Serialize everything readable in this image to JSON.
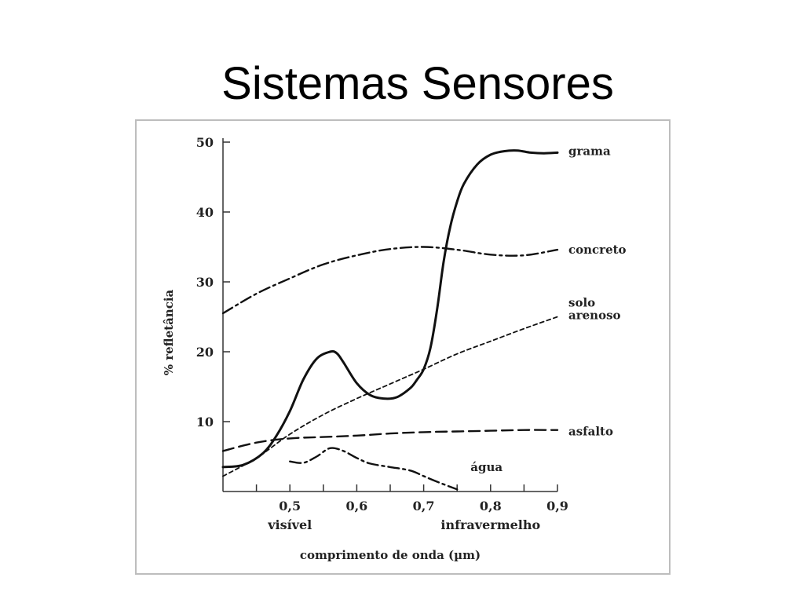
{
  "title": "Sistemas Sensores",
  "chart_data": {
    "type": "line",
    "xlabel": "comprimento de onda (µm)",
    "ylabel": "% refletância",
    "xlim": [
      0.4,
      0.9
    ],
    "ylim": [
      0,
      50
    ],
    "x_ticks": [
      "0,5",
      "0,6",
      "0,7",
      "0,8",
      "0,9"
    ],
    "y_ticks": [
      "10",
      "20",
      "30",
      "40",
      "50"
    ],
    "x_band_labels": [
      {
        "text": "visível",
        "x": 0.5
      },
      {
        "text": "infravermelho",
        "x": 0.8
      }
    ],
    "grid": false,
    "series": [
      {
        "name": "grama",
        "style": "solid",
        "x": [
          0.4,
          0.43,
          0.46,
          0.48,
          0.5,
          0.52,
          0.54,
          0.56,
          0.57,
          0.58,
          0.6,
          0.62,
          0.64,
          0.66,
          0.68,
          0.69,
          0.7,
          0.71,
          0.72,
          0.73,
          0.74,
          0.75,
          0.76,
          0.78,
          0.8,
          0.82,
          0.84,
          0.86,
          0.88,
          0.9
        ],
        "y": [
          3.5,
          3.8,
          5.5,
          8.0,
          11.5,
          16.0,
          19.0,
          20.0,
          19.8,
          18.5,
          15.5,
          13.8,
          13.3,
          13.5,
          14.8,
          16.0,
          17.5,
          20.5,
          26.0,
          33.0,
          38.0,
          41.5,
          44.0,
          46.8,
          48.2,
          48.7,
          48.8,
          48.5,
          48.4,
          48.5
        ]
      },
      {
        "name": "concreto",
        "style": "dashdot",
        "x": [
          0.4,
          0.45,
          0.5,
          0.55,
          0.6,
          0.65,
          0.7,
          0.75,
          0.8,
          0.85,
          0.9
        ],
        "y": [
          25.5,
          28.3,
          30.5,
          32.5,
          33.8,
          34.7,
          35.0,
          34.6,
          33.9,
          33.8,
          34.6
        ]
      },
      {
        "name": "solo\narenoso",
        "style": "short-dash",
        "x": [
          0.4,
          0.45,
          0.5,
          0.55,
          0.6,
          0.65,
          0.7,
          0.75,
          0.8,
          0.85,
          0.9
        ],
        "y": [
          2.2,
          4.8,
          8.2,
          11.0,
          13.3,
          15.4,
          17.5,
          19.7,
          21.5,
          23.3,
          25.0
        ]
      },
      {
        "name": "asfalto",
        "style": "long-dash",
        "x": [
          0.4,
          0.45,
          0.5,
          0.55,
          0.6,
          0.65,
          0.7,
          0.75,
          0.8,
          0.85,
          0.9
        ],
        "y": [
          5.8,
          7.0,
          7.6,
          7.8,
          8.0,
          8.3,
          8.5,
          8.6,
          8.7,
          8.8,
          8.8
        ]
      },
      {
        "name": "água",
        "style": "dashdot",
        "x": [
          0.5,
          0.52,
          0.54,
          0.56,
          0.58,
          0.6,
          0.62,
          0.65,
          0.68,
          0.7,
          0.72,
          0.75
        ],
        "y": [
          4.3,
          4.1,
          5.0,
          6.2,
          5.8,
          4.8,
          4.0,
          3.5,
          3.0,
          2.2,
          1.4,
          0.3
        ]
      }
    ]
  }
}
